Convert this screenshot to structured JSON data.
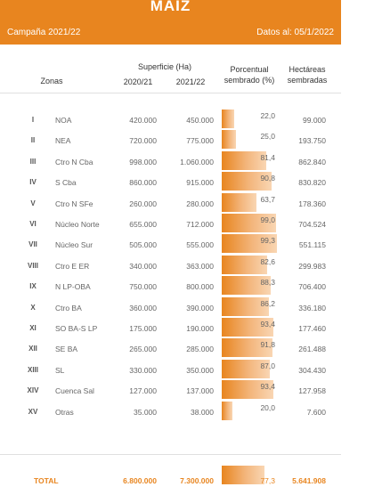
{
  "header": {
    "title": "MAIZ",
    "campaign": "Campaña 2021/22",
    "date": "Datos al: 05/1/2022"
  },
  "columns": {
    "zonas": "Zonas",
    "superficie": "Superficie (Ha)",
    "y1": "2020/21",
    "y2": "2021/22",
    "porcentual": "Porcentual",
    "sembrado": "sembrado (%)",
    "hectareas": "Hectáreas",
    "sembradas": "sembradas"
  },
  "rows": [
    {
      "roman": "I",
      "zona": "NOA",
      "v1": "420.000",
      "v2": "450.000",
      "pct": "22,0",
      "pct_value": 22.0,
      "hect": "99.000"
    },
    {
      "roman": "II",
      "zona": "NEA",
      "v1": "720.000",
      "v2": "775.000",
      "pct": "25,0",
      "pct_value": 25.0,
      "hect": "193.750"
    },
    {
      "roman": "III",
      "zona": "Ctro N Cba",
      "v1": "998.000",
      "v2": "1.060.000",
      "pct": "81,4",
      "pct_value": 81.4,
      "hect": "862.840"
    },
    {
      "roman": "IV",
      "zona": "S Cba",
      "v1": "860.000",
      "v2": "915.000",
      "pct": "90,8",
      "pct_value": 90.8,
      "hect": "830.820"
    },
    {
      "roman": "V",
      "zona": "Ctro N SFe",
      "v1": "260.000",
      "v2": "280.000",
      "pct": "63,7",
      "pct_value": 63.7,
      "hect": "178.360"
    },
    {
      "roman": "VI",
      "zona": "Núcleo Norte",
      "v1": "655.000",
      "v2": "712.000",
      "pct": "99,0",
      "pct_value": 99.0,
      "hect": "704.524"
    },
    {
      "roman": "VII",
      "zona": "Núcleo Sur",
      "v1": "505.000",
      "v2": "555.000",
      "pct": "99,3",
      "pct_value": 99.3,
      "hect": "551.115"
    },
    {
      "roman": "VIII",
      "zona": "Ctro E ER",
      "v1": "340.000",
      "v2": "363.000",
      "pct": "82,6",
      "pct_value": 82.6,
      "hect": "299.983"
    },
    {
      "roman": "IX",
      "zona": "N LP-OBA",
      "v1": "750.000",
      "v2": "800.000",
      "pct": "88,3",
      "pct_value": 88.3,
      "hect": "706.400"
    },
    {
      "roman": "X",
      "zona": "Ctro BA",
      "v1": "360.000",
      "v2": "390.000",
      "pct": "86,2",
      "pct_value": 86.2,
      "hect": "336.180"
    },
    {
      "roman": "XI",
      "zona": "SO BA-S LP",
      "v1": "175.000",
      "v2": "190.000",
      "pct": "93,4",
      "pct_value": 93.4,
      "hect": "177.460"
    },
    {
      "roman": "XII",
      "zona": "SE BA",
      "v1": "265.000",
      "v2": "285.000",
      "pct": "91,8",
      "pct_value": 91.8,
      "hect": "261.488"
    },
    {
      "roman": "XIII",
      "zona": "SL",
      "v1": "330.000",
      "v2": "350.000",
      "pct": "87,0",
      "pct_value": 87.0,
      "hect": "304.430"
    },
    {
      "roman": "XIV",
      "zona": "Cuenca Sal",
      "v1": "127.000",
      "v2": "137.000",
      "pct": "93,4",
      "pct_value": 93.4,
      "hect": "127.958"
    },
    {
      "roman": "XV",
      "zona": "Otras",
      "v1": "35.000",
      "v2": "38.000",
      "pct": "20,0",
      "pct_value": 20.0,
      "hect": "7.600"
    }
  ],
  "total": {
    "label": "TOTAL",
    "v1": "6.800.000",
    "v2": "7.300.000",
    "pct": "77,3",
    "pct_value": 77.3,
    "hect": "5.641.908"
  },
  "colors": {
    "accent": "#e8851f"
  }
}
